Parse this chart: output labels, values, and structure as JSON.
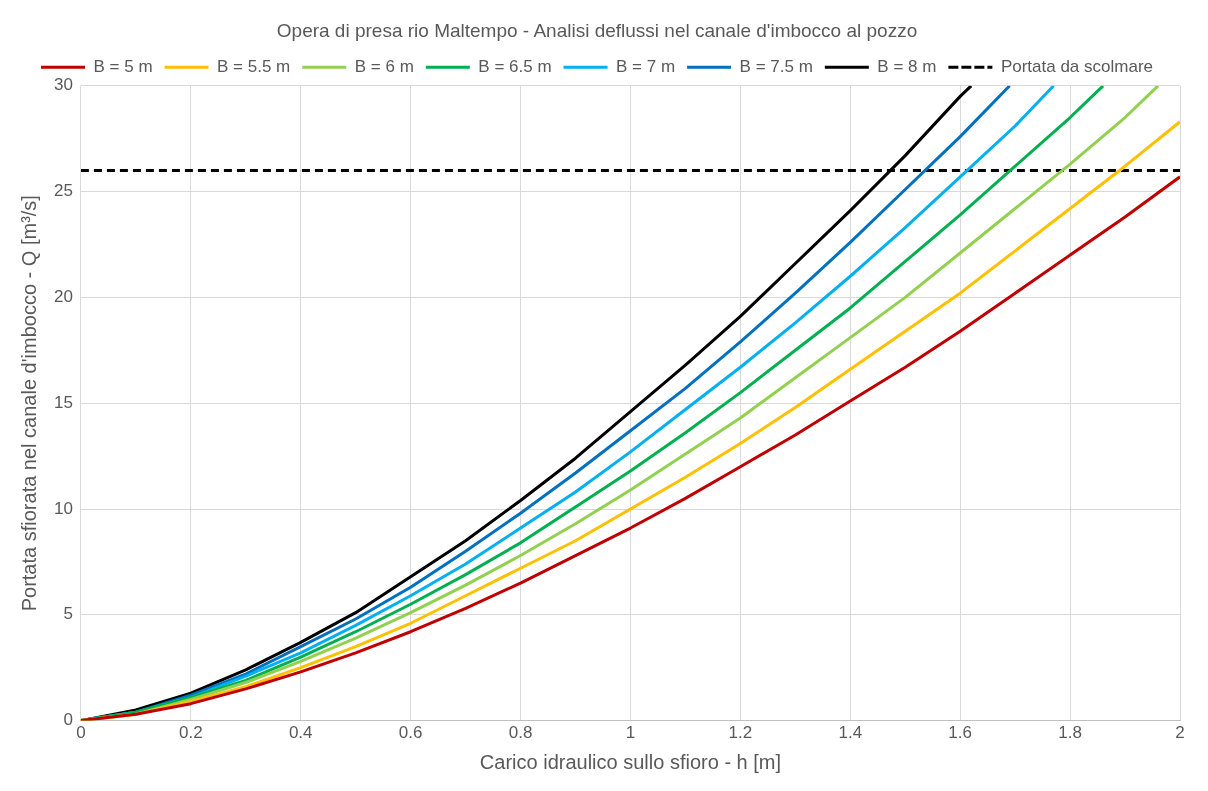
{
  "chart_data": {
    "type": "line",
    "title": "Opera di presa rio Maltempo - Analisi deflussi nel canale d'imbocco al pozzo",
    "xlabel": "Carico idraulico sullo sfioro - h [m]",
    "ylabel": "Portata sfiorata nel canale d'imbocco - Q [m³/s]",
    "xlim": [
      0,
      2
    ],
    "xticks": [
      0,
      0.2,
      0.4,
      0.6,
      0.8,
      1,
      1.2,
      1.4,
      1.6,
      1.8,
      2
    ],
    "ylim": [
      0,
      30
    ],
    "yticks": [
      0,
      5,
      10,
      15,
      20,
      25,
      30
    ],
    "grid": true,
    "legend": "top",
    "marker": "none",
    "line_style": "solid",
    "series": [
      {
        "name": "B = 5 m",
        "color": "#c00000",
        "x": [
          0,
          0.1,
          0.2,
          0.3,
          0.4,
          0.5,
          0.6,
          0.7,
          0.8,
          0.9,
          1,
          1.1,
          1.2,
          1.3,
          1.4,
          1.5,
          1.6,
          1.7,
          1.8,
          1.9,
          2
        ],
        "values": [
          0,
          0.3,
          0.8,
          1.5,
          2.3,
          3.2,
          4.2,
          5.3,
          6.5,
          7.8,
          9.1,
          10.5,
          12,
          13.5,
          15.1,
          16.7,
          18.4,
          20.2,
          22,
          23.8,
          25.7
        ]
      },
      {
        "name": "B = 5.5 m",
        "color": "#ffc000",
        "x": [
          0,
          0.1,
          0.2,
          0.3,
          0.4,
          0.5,
          0.6,
          0.7,
          0.8,
          0.9,
          1,
          1.1,
          1.2,
          1.3,
          1.4,
          1.5,
          1.6,
          1.7,
          1.8,
          1.9,
          2
        ],
        "values": [
          0,
          0.3,
          0.9,
          1.6,
          2.5,
          3.5,
          4.6,
          5.9,
          7.2,
          8.5,
          10,
          11.5,
          13.1,
          14.8,
          16.6,
          18.4,
          20.2,
          22.2,
          24.2,
          26.2,
          28.3
        ]
      },
      {
        "name": "B = 6 m",
        "color": "#92d050",
        "x": [
          0,
          0.1,
          0.2,
          0.3,
          0.4,
          0.5,
          0.6,
          0.7,
          0.8,
          0.9,
          1,
          1.1,
          1.2,
          1.3,
          1.4,
          1.5,
          1.6,
          1.7,
          1.8,
          1.9,
          1.96
        ],
        "values": [
          0,
          0.3,
          1,
          1.8,
          2.8,
          3.9,
          5.1,
          6.4,
          7.8,
          9.3,
          10.9,
          12.6,
          14.3,
          16.2,
          18.1,
          20,
          22.1,
          24.2,
          26.3,
          28.5,
          30
        ]
      },
      {
        "name": "B = 6.5 m",
        "color": "#00b050",
        "x": [
          0,
          0.1,
          0.2,
          0.3,
          0.4,
          0.5,
          0.6,
          0.7,
          0.8,
          0.9,
          1,
          1.1,
          1.2,
          1.3,
          1.4,
          1.5,
          1.6,
          1.7,
          1.8,
          1.86
        ],
        "values": [
          0,
          0.4,
          1.1,
          1.9,
          3,
          4.2,
          5.5,
          6.9,
          8.4,
          10.1,
          11.8,
          13.6,
          15.5,
          17.5,
          19.5,
          21.7,
          23.9,
          26.2,
          28.5,
          30
        ]
      },
      {
        "name": "B = 7 m",
        "color": "#00b0f0",
        "x": [
          0,
          0.1,
          0.2,
          0.3,
          0.4,
          0.5,
          0.6,
          0.7,
          0.8,
          0.9,
          1,
          1.1,
          1.2,
          1.3,
          1.4,
          1.5,
          1.6,
          1.7,
          1.77
        ],
        "values": [
          0,
          0.4,
          1.1,
          2.1,
          3.2,
          4.5,
          5.9,
          7.4,
          9.1,
          10.8,
          12.7,
          14.7,
          16.7,
          18.8,
          21,
          23.3,
          25.7,
          28.1,
          30
        ]
      },
      {
        "name": "B = 7.5 m",
        "color": "#0070c0",
        "x": [
          0,
          0.1,
          0.2,
          0.3,
          0.4,
          0.5,
          0.6,
          0.7,
          0.8,
          0.9,
          1,
          1.1,
          1.2,
          1.3,
          1.4,
          1.5,
          1.6,
          1.69
        ],
        "values": [
          0,
          0.4,
          1.2,
          2.2,
          3.5,
          4.8,
          6.3,
          8,
          9.8,
          11.7,
          13.7,
          15.7,
          17.9,
          20.2,
          22.6,
          25.1,
          27.6,
          30
        ]
      },
      {
        "name": "B = 8 m",
        "color": "#000000",
        "x": [
          0,
          0.1,
          0.2,
          0.3,
          0.4,
          0.5,
          0.6,
          0.7,
          0.8,
          0.9,
          1,
          1.1,
          1.2,
          1.3,
          1.4,
          1.5,
          1.6,
          1.62
        ],
        "values": [
          0,
          0.5,
          1.3,
          2.4,
          3.7,
          5.1,
          6.8,
          8.5,
          10.4,
          12.4,
          14.6,
          16.8,
          19.1,
          21.6,
          24.1,
          26.7,
          29.5,
          30
        ]
      }
    ],
    "ref_lines": [
      {
        "axis": "y",
        "value": 26,
        "label": "Portata da scolmare",
        "color": "#000000",
        "line_style": "dashed"
      }
    ]
  }
}
